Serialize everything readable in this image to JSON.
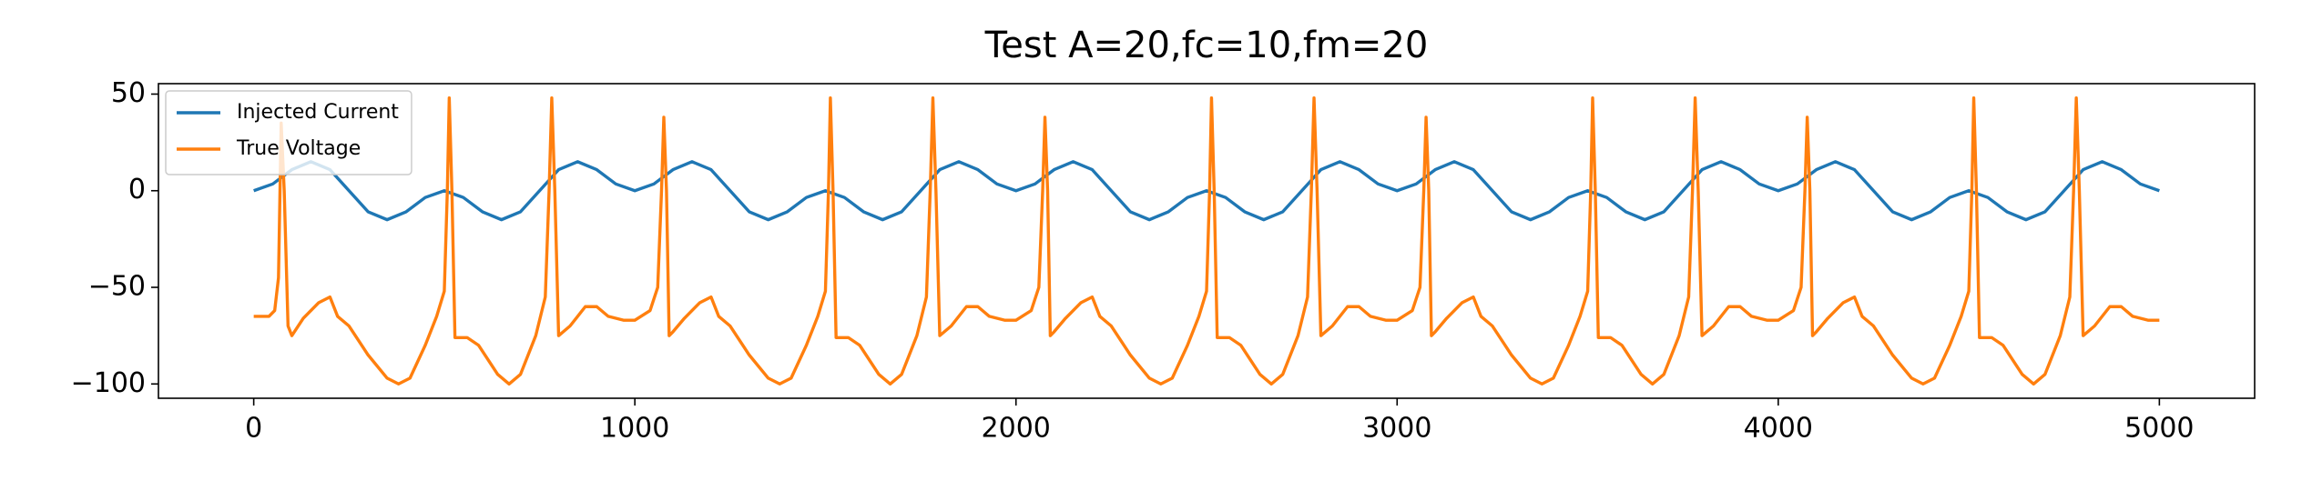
{
  "chart_data": {
    "type": "line",
    "title": "Test A=20,fc=10,fm=20",
    "xlim": [
      -250,
      5250
    ],
    "ylim": [
      -107.4,
      55.4
    ],
    "xticks": [
      0,
      1000,
      2000,
      3000,
      4000,
      5000
    ],
    "yticks": [
      {
        "value": -100,
        "label": "−100"
      },
      {
        "value": -50,
        "label": "−50"
      },
      0,
      50
    ],
    "legend": "upper left",
    "series": [
      {
        "name": "Injected Current",
        "color": "#1f77b4",
        "x": [
          0,
          50,
          100,
          150,
          200,
          250,
          300,
          350,
          400,
          450,
          500,
          550,
          600,
          650,
          700,
          750,
          800,
          850,
          900,
          950,
          1000,
          1050,
          1100,
          1150,
          1200,
          1250,
          1300,
          1350,
          1400,
          1450,
          1500,
          1550,
          1600,
          1650,
          1700,
          1750,
          1800,
          1850,
          1900,
          1950,
          2000,
          2050,
          2100,
          2150,
          2200,
          2250,
          2300,
          2350,
          2400,
          2450,
          2500,
          2550,
          2600,
          2650,
          2700,
          2750,
          2800,
          2850,
          2900,
          2950,
          3000,
          3050,
          3100,
          3150,
          3200,
          3250,
          3300,
          3350,
          3400,
          3450,
          3500,
          3550,
          3600,
          3650,
          3700,
          3750,
          3800,
          3850,
          3900,
          3950,
          4000,
          4050,
          4100,
          4150,
          4200,
          4250,
          4300,
          4350,
          4400,
          4450,
          4500,
          4550,
          4600,
          4650,
          4700,
          4750,
          4800,
          4850,
          4900,
          4950,
          5000
        ],
        "values": [
          0,
          3.5,
          10.9,
          15,
          10.9,
          0,
          -10.9,
          -15,
          -10.9,
          -3.5,
          0,
          -3.5,
          -10.9,
          -15,
          -10.9,
          0,
          10.9,
          15,
          10.9,
          3.5,
          0,
          3.5,
          10.9,
          15,
          10.9,
          0,
          -10.9,
          -15,
          -10.9,
          -3.5,
          0,
          -3.5,
          -10.9,
          -15,
          -10.9,
          0,
          10.9,
          15,
          10.9,
          3.5,
          0,
          3.5,
          10.9,
          15,
          10.9,
          0,
          -10.9,
          -15,
          -10.9,
          -3.5,
          0,
          -3.5,
          -10.9,
          -15,
          -10.9,
          0,
          10.9,
          15,
          10.9,
          3.5,
          0,
          3.5,
          10.9,
          15,
          10.9,
          0,
          -10.9,
          -15,
          -10.9,
          -3.5,
          0,
          -3.5,
          -10.9,
          -15,
          -10.9,
          0,
          10.9,
          15,
          10.9,
          3.5,
          0,
          3.5,
          10.9,
          15,
          10.9,
          0,
          -10.9,
          -15,
          -10.9,
          -3.5,
          0,
          -3.5,
          -10.9,
          -15,
          -10.9,
          0,
          10.9,
          15,
          10.9,
          3.5,
          0
        ]
      },
      {
        "name": "True Voltage",
        "color": "#ff7f0e",
        "x": [
          0,
          40,
          55,
          65,
          72,
          80,
          90,
          100,
          130,
          170,
          200,
          220,
          250,
          300,
          350,
          380,
          410,
          450,
          480,
          500,
          508,
          513,
          520,
          528,
          560,
          590,
          640,
          670,
          700,
          740,
          765,
          775,
          782,
          790,
          800,
          830,
          870,
          900,
          930,
          970,
          1000,
          1040,
          1060,
          1070,
          1076,
          1083,
          1090,
          1100,
          1130,
          1170,
          1200,
          1220,
          1250,
          1300,
          1350,
          1380,
          1410,
          1450,
          1480,
          1500,
          1508,
          1513,
          1520,
          1528,
          1560,
          1590,
          1640,
          1670,
          1700,
          1740,
          1765,
          1775,
          1782,
          1790,
          1800,
          1830,
          1870,
          1900,
          1930,
          1970,
          2000,
          2040,
          2060,
          2070,
          2076,
          2083,
          2090,
          2100,
          2130,
          2170,
          2200,
          2220,
          2250,
          2300,
          2350,
          2380,
          2410,
          2450,
          2480,
          2500,
          2508,
          2513,
          2520,
          2528,
          2560,
          2590,
          2640,
          2670,
          2700,
          2740,
          2765,
          2775,
          2782,
          2790,
          2800,
          2830,
          2870,
          2900,
          2930,
          2970,
          3000,
          3040,
          3060,
          3070,
          3076,
          3083,
          3090,
          3100,
          3130,
          3170,
          3200,
          3220,
          3250,
          3300,
          3350,
          3380,
          3410,
          3450,
          3480,
          3500,
          3508,
          3513,
          3520,
          3528,
          3560,
          3590,
          3640,
          3670,
          3700,
          3740,
          3765,
          3775,
          3782,
          3790,
          3800,
          3830,
          3870,
          3900,
          3930,
          3970,
          4000,
          4040,
          4060,
          4070,
          4076,
          4083,
          4090,
          4100,
          4130,
          4170,
          4200,
          4220,
          4250,
          4300,
          4350,
          4380,
          4410,
          4450,
          4480,
          4500,
          4508,
          4513,
          4520,
          4528,
          4560,
          4590,
          4640,
          4670,
          4700,
          4740,
          4765,
          4775,
          4782,
          4790,
          4800,
          4830,
          4870,
          4900,
          4930,
          4970,
          5000
        ],
        "values": [
          -65,
          -65,
          -62,
          -45,
          35,
          0,
          -70,
          -75,
          -66,
          -58,
          -55,
          -65,
          -70,
          -85,
          -97,
          -100,
          -97,
          -80,
          -65,
          -52,
          0,
          48,
          0,
          -76,
          -76,
          -80,
          -95,
          -100,
          -95,
          -75,
          -55,
          0,
          48,
          0,
          -75,
          -70,
          -60,
          -60,
          -65,
          -67,
          -67,
          -62,
          -50,
          0,
          38,
          0,
          -75,
          -73,
          -66,
          -58,
          -55,
          -65,
          -70,
          -85,
          -97,
          -100,
          -97,
          -80,
          -65,
          -52,
          0,
          48,
          0,
          -76,
          -76,
          -80,
          -95,
          -100,
          -95,
          -75,
          -55,
          0,
          48,
          0,
          -75,
          -70,
          -60,
          -60,
          -65,
          -67,
          -67,
          -62,
          -50,
          0,
          38,
          0,
          -75,
          -73,
          -66,
          -58,
          -55,
          -65,
          -70,
          -85,
          -97,
          -100,
          -97,
          -80,
          -65,
          -52,
          0,
          48,
          0,
          -76,
          -76,
          -80,
          -95,
          -100,
          -95,
          -75,
          -55,
          0,
          48,
          0,
          -75,
          -70,
          -60,
          -60,
          -65,
          -67,
          -67,
          -62,
          -50,
          0,
          38,
          0,
          -75,
          -73,
          -66,
          -58,
          -55,
          -65,
          -70,
          -85,
          -97,
          -100,
          -97,
          -80,
          -65,
          -52,
          0,
          48,
          0,
          -76,
          -76,
          -80,
          -95,
          -100,
          -95,
          -75,
          -55,
          0,
          48,
          0,
          -75,
          -70,
          -60,
          -60,
          -65,
          -67,
          -67,
          -62,
          -50,
          0,
          38,
          0,
          -75,
          -73,
          -66,
          -58,
          -55,
          -65,
          -70,
          -85,
          -97,
          -100,
          -97,
          -80,
          -65,
          -52,
          0,
          48,
          0,
          -76,
          -76,
          -80,
          -95,
          -100,
          -95,
          -75,
          -55,
          0,
          48,
          0,
          -75,
          -70,
          -60,
          -60,
          -65,
          -67,
          -67
        ]
      }
    ]
  }
}
